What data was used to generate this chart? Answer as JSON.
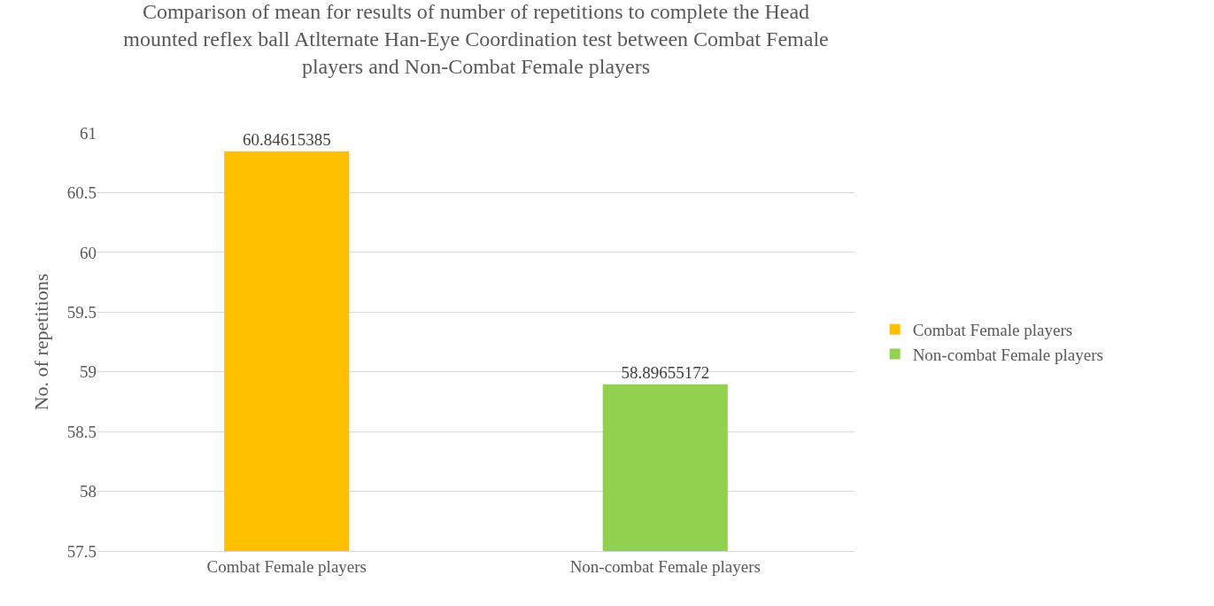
{
  "chart_data": {
    "type": "bar",
    "title": "Comparison of mean for results of number of repetitions to complete the Head mounted reflex ball Atlternate Han-Eye Coordination test between Combat Female players and Non-Combat Female players",
    "ylabel": "No. of repetitions",
    "categories": [
      "Combat Female players",
      "Non-combat Female players"
    ],
    "series": [
      {
        "name": "Combat Female players",
        "color": "#ffc000",
        "values": [
          60.84615385,
          null
        ]
      },
      {
        "name": "Non-combat Female players",
        "color": "#92d050",
        "values": [
          null,
          58.89655172
        ]
      }
    ],
    "ylim": [
      57.5,
      61
    ],
    "yticks": [
      57.5,
      58,
      58.5,
      59,
      59.5,
      60,
      60.5,
      61
    ],
    "grid": "y",
    "legend": "right",
    "data_labels": true
  }
}
